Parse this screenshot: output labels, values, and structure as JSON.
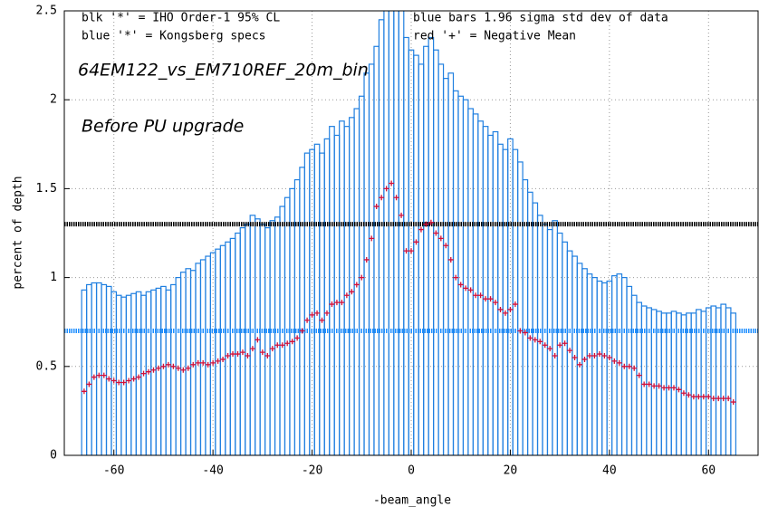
{
  "chart_data": {
    "type": "bar",
    "annotations": [
      "blk '*' = IHO Order-1 95% CL",
      "blue '*' = Kongsberg specs",
      "blue bars 1.96 sigma std dev of data",
      "red '+' = Negative Mean",
      "64EM122_vs_EM710REF_20m_bin",
      "Before PU upgrade"
    ],
    "xlabel": "-beam_angle",
    "ylabel": "percent of depth",
    "xlim": [
      -70,
      70
    ],
    "ylim": [
      0,
      2.5
    ],
    "xticks": [
      -60,
      -40,
      -20,
      0,
      20,
      40,
      60
    ],
    "yticks": [
      0,
      0.5,
      1,
      1.5,
      2,
      2.5
    ],
    "grid": true,
    "x": [
      -66,
      -65,
      -64,
      -63,
      -62,
      -61,
      -60,
      -59,
      -58,
      -57,
      -56,
      -55,
      -54,
      -53,
      -52,
      -51,
      -50,
      -49,
      -48,
      -47,
      -46,
      -45,
      -44,
      -43,
      -42,
      -41,
      -40,
      -39,
      -38,
      -37,
      -36,
      -35,
      -34,
      -33,
      -32,
      -31,
      -30,
      -29,
      -28,
      -27,
      -26,
      -25,
      -24,
      -23,
      -22,
      -21,
      -20,
      -19,
      -18,
      -17,
      -16,
      -15,
      -14,
      -13,
      -12,
      -11,
      -10,
      -9,
      -8,
      -7,
      -6,
      -5,
      -4,
      -3,
      -2,
      -1,
      0,
      1,
      2,
      3,
      4,
      5,
      6,
      7,
      8,
      9,
      10,
      11,
      12,
      13,
      14,
      15,
      16,
      17,
      18,
      19,
      20,
      21,
      22,
      23,
      24,
      25,
      26,
      27,
      28,
      29,
      30,
      31,
      32,
      33,
      34,
      35,
      36,
      37,
      38,
      39,
      40,
      41,
      42,
      43,
      44,
      45,
      46,
      47,
      48,
      49,
      50,
      51,
      52,
      53,
      54,
      55,
      56,
      57,
      58,
      59,
      60,
      61,
      62,
      63,
      64,
      65
    ],
    "series": [
      {
        "color": "#1f7fe0",
        "values": [
          0.93,
          0.96,
          0.97,
          0.97,
          0.96,
          0.95,
          0.92,
          0.9,
          0.89,
          0.9,
          0.91,
          0.92,
          0.9,
          0.92,
          0.93,
          0.94,
          0.95,
          0.93,
          0.96,
          1.0,
          1.03,
          1.05,
          1.04,
          1.08,
          1.1,
          1.12,
          1.14,
          1.16,
          1.18,
          1.2,
          1.22,
          1.25,
          1.28,
          1.3,
          1.35,
          1.33,
          1.3,
          1.28,
          1.32,
          1.34,
          1.4,
          1.45,
          1.5,
          1.55,
          1.62,
          1.7,
          1.72,
          1.75,
          1.7,
          1.78,
          1.85,
          1.8,
          1.88,
          1.85,
          1.9,
          1.95,
          2.02,
          2.15,
          2.2,
          2.3,
          2.45,
          2.6,
          2.7,
          2.7,
          2.6,
          2.35,
          2.28,
          2.25,
          2.2,
          2.3,
          2.35,
          2.28,
          2.2,
          2.12,
          2.15,
          2.05,
          2.02,
          2.0,
          1.95,
          1.92,
          1.88,
          1.85,
          1.8,
          1.82,
          1.75,
          1.72,
          1.78,
          1.72,
          1.65,
          1.55,
          1.48,
          1.42,
          1.35,
          1.3,
          1.27,
          1.32,
          1.25,
          1.2,
          1.15,
          1.12,
          1.08,
          1.05,
          1.02,
          1.0,
          0.98,
          0.97,
          0.98,
          1.01,
          1.02,
          1.0,
          0.95,
          0.9,
          0.86,
          0.84,
          0.83,
          0.82,
          0.81,
          0.8,
          0.8,
          0.81,
          0.8,
          0.79,
          0.8,
          0.8,
          0.82,
          0.81,
          0.83,
          0.84,
          0.83,
          0.85,
          0.83,
          0.8
        ]
      },
      {
        "color": "#d0103a",
        "values": [
          0.36,
          0.4,
          0.44,
          0.45,
          0.45,
          0.43,
          0.42,
          0.41,
          0.41,
          0.42,
          0.43,
          0.44,
          0.46,
          0.47,
          0.48,
          0.49,
          0.5,
          0.51,
          0.5,
          0.49,
          0.48,
          0.49,
          0.51,
          0.52,
          0.52,
          0.51,
          0.52,
          0.53,
          0.54,
          0.56,
          0.57,
          0.57,
          0.58,
          0.56,
          0.6,
          0.65,
          0.58,
          0.56,
          0.6,
          0.62,
          0.62,
          0.63,
          0.64,
          0.66,
          0.7,
          0.76,
          0.79,
          0.8,
          0.76,
          0.8,
          0.85,
          0.86,
          0.86,
          0.9,
          0.92,
          0.96,
          1.0,
          1.1,
          1.22,
          1.4,
          1.45,
          1.5,
          1.53,
          1.45,
          1.35,
          1.15,
          1.15,
          1.2,
          1.27,
          1.3,
          1.31,
          1.25,
          1.22,
          1.18,
          1.1,
          1.0,
          0.96,
          0.94,
          0.93,
          0.9,
          0.9,
          0.88,
          0.88,
          0.86,
          0.82,
          0.8,
          0.82,
          0.85,
          0.7,
          0.69,
          0.66,
          0.65,
          0.64,
          0.62,
          0.6,
          0.56,
          0.62,
          0.63,
          0.59,
          0.55,
          0.51,
          0.54,
          0.56,
          0.56,
          0.57,
          0.56,
          0.55,
          0.53,
          0.52,
          0.5,
          0.5,
          0.49,
          0.45,
          0.4,
          0.4,
          0.39,
          0.39,
          0.38,
          0.38,
          0.38,
          0.37,
          0.35,
          0.34,
          0.33,
          0.33,
          0.33,
          0.33,
          0.32,
          0.32,
          0.32,
          0.32,
          0.3
        ]
      }
    ],
    "reference_lines": [
      {
        "value": 1.3,
        "color": "#000000"
      },
      {
        "value": 0.7,
        "color": "#1f8fff"
      }
    ]
  }
}
